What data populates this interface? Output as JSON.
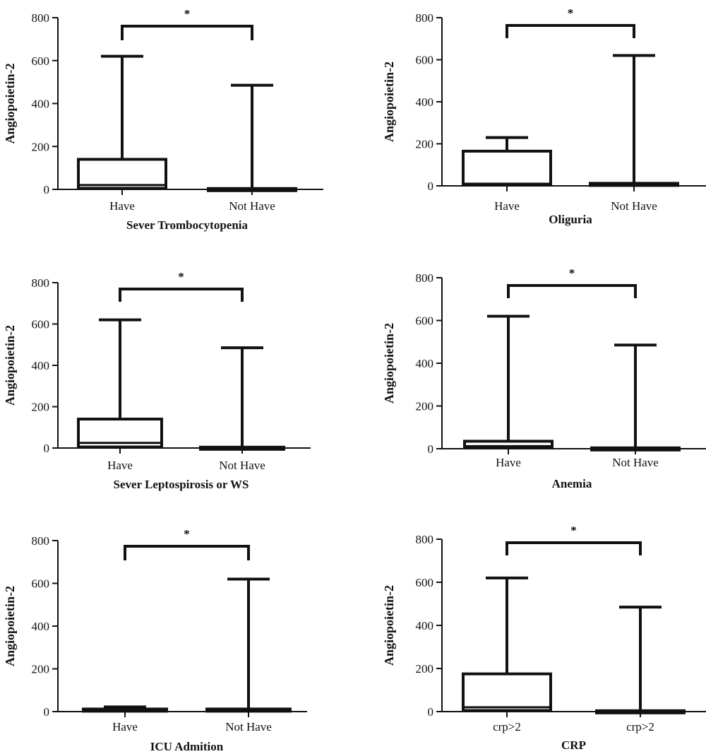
{
  "chart_data": [
    {
      "type": "boxplot",
      "ylabel": "Angiopoietin-2",
      "xlabel": "Sever Trombocytopenia",
      "ylim": [
        0,
        800
      ],
      "yticks": [
        0,
        200,
        400,
        600,
        800
      ],
      "categories": [
        "Have",
        "Not Have"
      ],
      "boxes": [
        {
          "min": 0,
          "q1": 5,
          "median": 20,
          "q3": 140,
          "max": 620
        },
        {
          "min": 0,
          "q1": 0,
          "median": 2,
          "q3": 4,
          "max": 485
        }
      ],
      "significance": "*"
    },
    {
      "type": "boxplot",
      "ylabel": "Angiopoietin-2",
      "xlabel": "Oliguria",
      "ylim": [
        0,
        800
      ],
      "yticks": [
        0,
        200,
        400,
        600,
        800
      ],
      "categories": [
        "Have",
        "Not Have"
      ],
      "boxes": [
        {
          "min": 0,
          "q1": 5,
          "median": 10,
          "q3": 165,
          "max": 230
        },
        {
          "min": 0,
          "q1": 2,
          "median": 8,
          "q3": 12,
          "max": 620
        }
      ],
      "significance": "*"
    },
    {
      "type": "boxplot",
      "ylabel": "Angiopoietin-2",
      "xlabel": "Sever Leptospirosis or WS",
      "ylim": [
        0,
        800
      ],
      "yticks": [
        0,
        200,
        400,
        600,
        800
      ],
      "categories": [
        "Have",
        "Not Have"
      ],
      "boxes": [
        {
          "min": 0,
          "q1": 5,
          "median": 25,
          "q3": 140,
          "max": 620
        },
        {
          "min": 0,
          "q1": 0,
          "median": 2,
          "q3": 4,
          "max": 485
        }
      ],
      "significance": "*"
    },
    {
      "type": "boxplot",
      "ylabel": "Angiopoietin-2",
      "xlabel": "Anemia",
      "ylim": [
        0,
        800
      ],
      "yticks": [
        0,
        200,
        400,
        600,
        800
      ],
      "categories": [
        "Have",
        "Not Have"
      ],
      "boxes": [
        {
          "min": 0,
          "q1": 5,
          "median": 12,
          "q3": 35,
          "max": 620
        },
        {
          "min": 0,
          "q1": 0,
          "median": 2,
          "q3": 4,
          "max": 485
        }
      ],
      "significance": "*"
    },
    {
      "type": "boxplot",
      "ylabel": "Angiopoietin-2",
      "xlabel": "ICU Admition",
      "ylim": [
        0,
        800
      ],
      "yticks": [
        0,
        200,
        400,
        600,
        800
      ],
      "categories": [
        "Have",
        "Not Have"
      ],
      "boxes": [
        {
          "min": 0,
          "q1": 2,
          "median": 8,
          "q3": 12,
          "max": 22
        },
        {
          "min": 0,
          "q1": 2,
          "median": 8,
          "q3": 12,
          "max": 620
        }
      ],
      "significance": "*"
    },
    {
      "type": "boxplot",
      "ylabel": "Angiopoietin-2",
      "xlabel": "CRP",
      "ylim": [
        0,
        800
      ],
      "yticks": [
        0,
        200,
        400,
        600,
        800
      ],
      "categories": [
        "crp>2",
        "crp>2"
      ],
      "boxes": [
        {
          "min": 0,
          "q1": 5,
          "median": 20,
          "q3": 175,
          "max": 620
        },
        {
          "min": 0,
          "q1": 0,
          "median": 2,
          "q3": 4,
          "max": 485
        }
      ],
      "significance": "*"
    }
  ]
}
